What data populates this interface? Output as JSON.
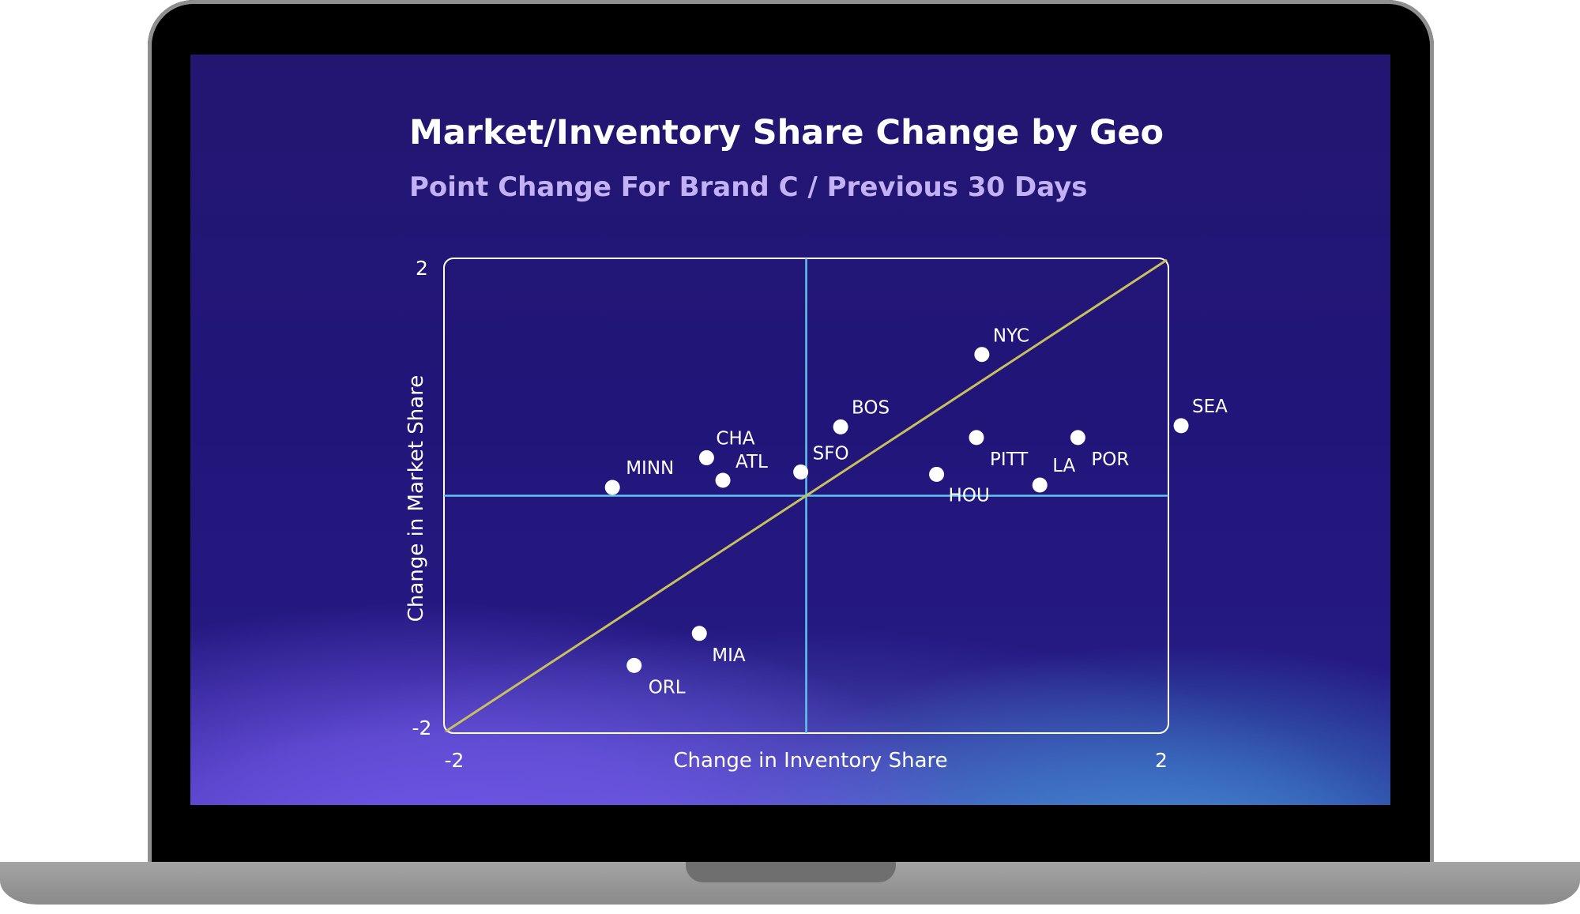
{
  "chart_data": {
    "type": "scatter",
    "title": "Market/Inventory Share Change by Geo",
    "subtitle": "Point Change For Brand C / Previous 30 Days",
    "xlabel": "Change in Inventory Share",
    "ylabel": "Change in Market Share",
    "xlim": [
      -2,
      2
    ],
    "ylim": [
      -2,
      2
    ],
    "x_tick_labels": [
      "-2",
      "2"
    ],
    "y_tick_labels": [
      "-2",
      "2"
    ],
    "grid": false,
    "reference_lines": [
      "x = 0",
      "y = 0",
      "y = x"
    ],
    "points": [
      {
        "label": "NYC",
        "x": 0.97,
        "y": 1.19
      },
      {
        "label": "BOS",
        "x": 0.19,
        "y": 0.58
      },
      {
        "label": "SEA",
        "x": 2.07,
        "y": 0.59
      },
      {
        "label": "CHA",
        "x": -0.55,
        "y": 0.32
      },
      {
        "label": "PITT",
        "x": 0.94,
        "y": 0.49
      },
      {
        "label": "POR",
        "x": 1.5,
        "y": 0.49
      },
      {
        "label": "SFO",
        "x": -0.03,
        "y": 0.2
      },
      {
        "label": "ATL",
        "x": -0.46,
        "y": 0.13
      },
      {
        "label": "MINN",
        "x": -1.07,
        "y": 0.07
      },
      {
        "label": "HOU",
        "x": 0.72,
        "y": 0.18
      },
      {
        "label": "LA",
        "x": 1.29,
        "y": 0.09
      },
      {
        "label": "MIA",
        "x": -0.59,
        "y": -1.16
      },
      {
        "label": "ORL",
        "x": -0.95,
        "y": -1.43
      }
    ],
    "colors": {
      "point": "#ffffff",
      "quadrant_lines": "#5fc6ee",
      "diagonal": "#c6c15c",
      "frame": "#ffffff"
    }
  }
}
